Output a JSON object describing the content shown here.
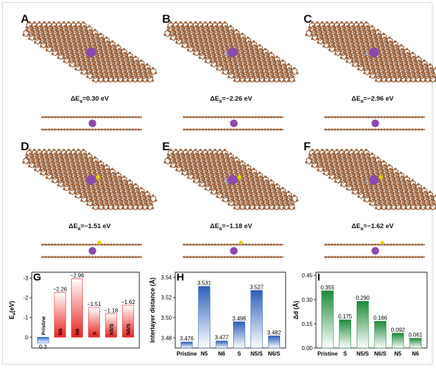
{
  "panels": [
    {
      "letter": "A",
      "energy": "=0.30 eV",
      "has_s": false
    },
    {
      "letter": "B",
      "energy": "=−2.26 eV",
      "has_s": false
    },
    {
      "letter": "C",
      "energy": "=−2.96 eV",
      "has_s": false
    },
    {
      "letter": "D",
      "energy": "=−1.51 eV",
      "has_s": true
    },
    {
      "letter": "E",
      "energy": "=−1.18 eV",
      "has_s": true
    },
    {
      "letter": "F",
      "energy": "=−1.62 eV",
      "has_s": true
    }
  ],
  "energy_prefix": "ΔE",
  "energy_sub": "a",
  "atom_colors": {
    "carbon": "#a66a43",
    "k_ion": "#8a4ab0",
    "sulfur": "#e3d400",
    "nitrogen": "#a8b4d8"
  },
  "chart_data": [
    {
      "panel": "G",
      "type": "bar",
      "ylabel": "E",
      "ylabel_sub": "a",
      "ylabel_unit": "(eV)",
      "categories": [
        "Pristine",
        "N5",
        "N6",
        "S",
        "N5/S",
        "N6/S"
      ],
      "values": [
        0.3,
        -2.26,
        -2.96,
        -1.51,
        -1.18,
        -1.62
      ],
      "value_labels": [
        "0.3",
        "−2.26",
        "−2.96",
        "−1.51",
        "−1.18",
        "−1.62"
      ],
      "yticks": [
        "-3",
        "-2",
        "-1",
        "0"
      ],
      "yaxis": "inverted",
      "ylim": [
        -3.3,
        0.55
      ],
      "color": "#e8231f",
      "negative_color": "#2f6bd0"
    },
    {
      "panel": "H",
      "type": "bar",
      "ylabel": "Interlayer distance (Å)",
      "categories": [
        "Pristine",
        "N5",
        "N6",
        "S",
        "N5/S",
        "N6/S"
      ],
      "values": [
        3.476,
        3.531,
        3.477,
        3.496,
        3.527,
        3.482
      ],
      "value_labels": [
        "3.476",
        "3.531",
        "3.477",
        "3.496",
        "3.527",
        "3.482"
      ],
      "yticks": [
        "3.48",
        "3.50",
        "3.52",
        "3.54"
      ],
      "ylim": [
        3.47,
        3.545
      ],
      "color": "#2f5fb8"
    },
    {
      "panel": "I",
      "type": "bar",
      "ylabel": "Δd (Å)",
      "categories": [
        "Pristine",
        "S",
        "N5/S",
        "N6/S",
        "N5",
        "N6"
      ],
      "values": [
        0.355,
        0.175,
        0.29,
        0.166,
        0.092,
        0.061
      ],
      "value_labels": [
        "0.355",
        "0.175",
        "0.290",
        "0.166",
        "0.092",
        "0.061"
      ],
      "yticks": [
        "0.00",
        "0.15",
        "0.30",
        "0.45"
      ],
      "ylim": [
        0,
        0.47
      ],
      "color": "#1f8a3a"
    }
  ]
}
